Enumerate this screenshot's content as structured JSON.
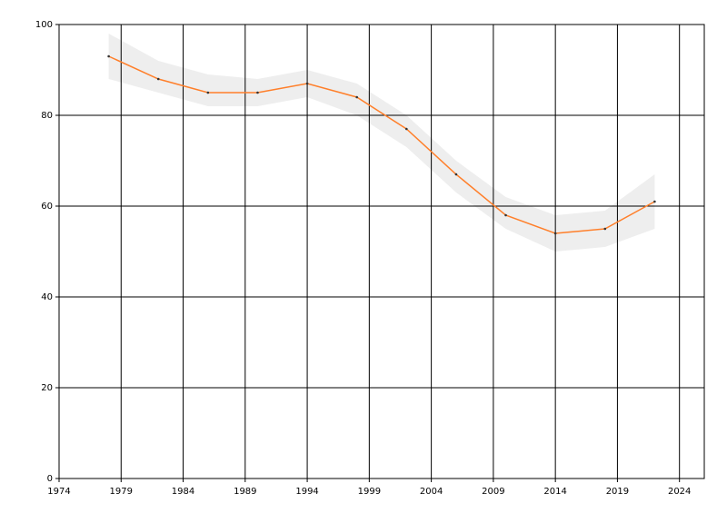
{
  "chart_data": {
    "type": "line",
    "x": [
      1978,
      1982,
      1986,
      1990,
      1994,
      1998,
      2002,
      2006,
      2010,
      2014,
      2018,
      2022
    ],
    "series": [
      {
        "color": "#ff7f2a",
        "band_color": "#eeeeee",
        "values": [
          93,
          88,
          85,
          85,
          87,
          84,
          77,
          67,
          58,
          54,
          55,
          61
        ],
        "upper": [
          98,
          92,
          89,
          88,
          90,
          87,
          80,
          70,
          62,
          58,
          59,
          67
        ],
        "lower": [
          88,
          85,
          82,
          82,
          84,
          80,
          73,
          63,
          55,
          50,
          51,
          55
        ]
      }
    ],
    "xlim": [
      1974,
      2026
    ],
    "xticks": [
      1974,
      1979,
      1984,
      1989,
      1994,
      1999,
      2004,
      2009,
      2014,
      2019,
      2024
    ],
    "ylim": [
      0,
      100
    ],
    "yticks": [
      0,
      20,
      40,
      60,
      80,
      100
    ],
    "grid": true
  }
}
